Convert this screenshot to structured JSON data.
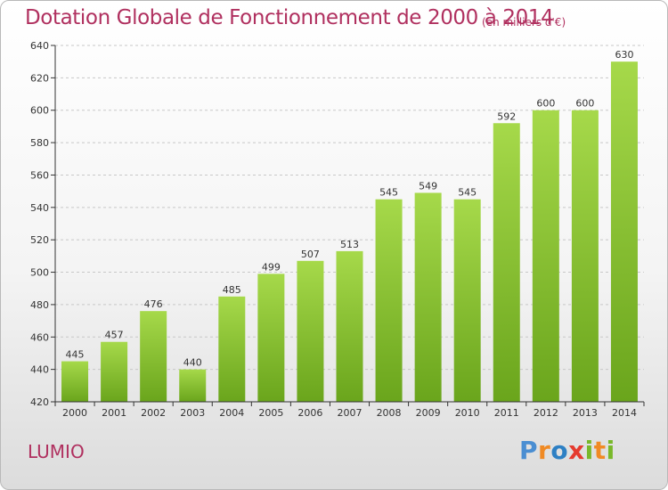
{
  "title": "Dotation Globale de Fonctionnement de 2000 à 2014",
  "subtitle": "(en milliers d'€)",
  "commune": "LUMIO",
  "logo_text": "Proxiti",
  "colors": {
    "title": "#b0305f",
    "bar_light": "#a6d94a",
    "bar_dark": "#6aa51c",
    "grid": "#c8c8c8",
    "axis": "#333333"
  },
  "chart_data": {
    "type": "bar",
    "title": "Dotation Globale de Fonctionnement de 2000 à 2014",
    "subtitle": "(en milliers d'€)",
    "categories": [
      "2000",
      "2001",
      "2002",
      "2003",
      "2004",
      "2005",
      "2006",
      "2007",
      "2008",
      "2009",
      "2010",
      "2011",
      "2012",
      "2013",
      "2014"
    ],
    "values": [
      445,
      457,
      476,
      440,
      485,
      499,
      507,
      513,
      545,
      549,
      545,
      592,
      600,
      600,
      630
    ],
    "ylim": [
      420,
      640
    ],
    "yticks": [
      420,
      440,
      460,
      480,
      500,
      520,
      540,
      560,
      580,
      600,
      620,
      640
    ],
    "grid": true,
    "data_labels": true
  }
}
